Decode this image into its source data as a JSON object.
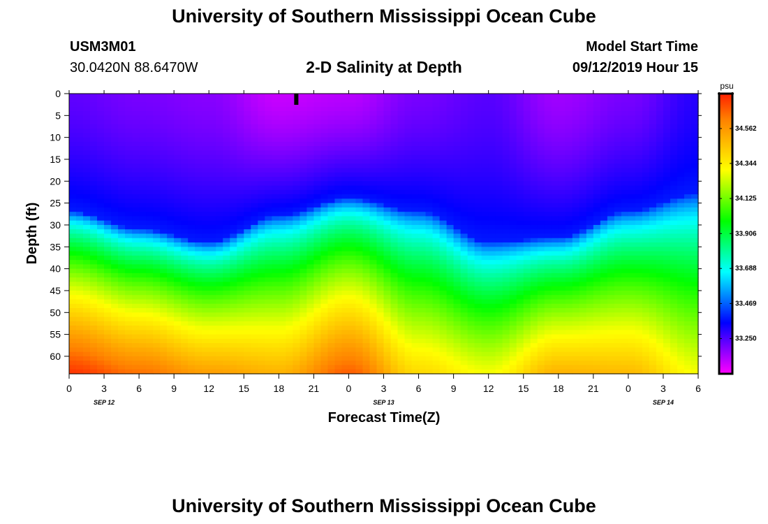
{
  "header": {
    "title": "University of Southern Mississippi Ocean Cube",
    "station_id": "USM3M01",
    "location": "30.0420N 88.6470W",
    "chart_title": "2-D Salinity at Depth",
    "model_start_label": "Model Start Time",
    "model_start_value": "09/12/2019 Hour 15"
  },
  "footer": {
    "title": "University of Southern Mississippi Ocean Cube"
  },
  "chart_data": {
    "type": "heatmap",
    "title": "2-D Salinity at Depth",
    "xlabel": "Forecast Time(Z)",
    "ylabel": "Depth (ft)",
    "x_tick_labels": [
      "0",
      "3",
      "6",
      "9",
      "12",
      "15",
      "18",
      "21",
      "0",
      "3",
      "6",
      "9",
      "12",
      "15",
      "18",
      "21",
      "0",
      "3",
      "6"
    ],
    "x_range_hours": [
      0,
      54
    ],
    "date_labels": [
      {
        "text": "SEP 12",
        "hour": 3
      },
      {
        "text": "SEP 13",
        "hour": 27
      },
      {
        "text": "SEP 14",
        "hour": 51
      }
    ],
    "y_tick_labels": [
      "0",
      "5",
      "10",
      "15",
      "20",
      "25",
      "30",
      "35",
      "40",
      "45",
      "50",
      "55",
      "60"
    ],
    "y_range_ft": [
      0,
      64
    ],
    "y_inverted": true,
    "current_time_marker_hour": 19.5,
    "colorbar": {
      "unit": "psu",
      "min": 33.03,
      "max": 34.78,
      "tick_values": [
        33.25,
        33.469,
        33.688,
        33.906,
        34.125,
        34.344,
        34.562
      ],
      "tick_labels": [
        "33.250",
        "33.469",
        "33.688",
        "33.906",
        "34.125",
        "34.344",
        "34.562"
      ],
      "colors": [
        "#ff00ff",
        "#8000ff",
        "#0000ff",
        "#0080ff",
        "#00ffff",
        "#00ff80",
        "#00ff00",
        "#80ff00",
        "#ffff00",
        "#ffc000",
        "#ff8000",
        "#ff2000"
      ]
    },
    "halocline_depth_ft": {
      "hours": [
        0,
        6,
        12,
        18,
        24,
        30,
        36,
        42,
        48,
        54
      ],
      "values": [
        35,
        39,
        42,
        36,
        32,
        35,
        42,
        41,
        35,
        31
      ]
    },
    "surface_salinity_psu": {
      "hours": [
        0,
        6,
        12,
        18,
        24,
        30,
        36,
        42,
        48,
        54
      ],
      "values": [
        33.23,
        33.2,
        33.18,
        33.1,
        33.12,
        33.2,
        33.24,
        33.15,
        33.2,
        33.3
      ]
    },
    "bottom_salinity_psu": {
      "hours": [
        0,
        6,
        12,
        18,
        24,
        30,
        36,
        42,
        48,
        54
      ],
      "values": [
        34.75,
        34.65,
        34.55,
        34.5,
        34.68,
        34.4,
        34.3,
        34.5,
        34.48,
        34.3
      ]
    }
  }
}
